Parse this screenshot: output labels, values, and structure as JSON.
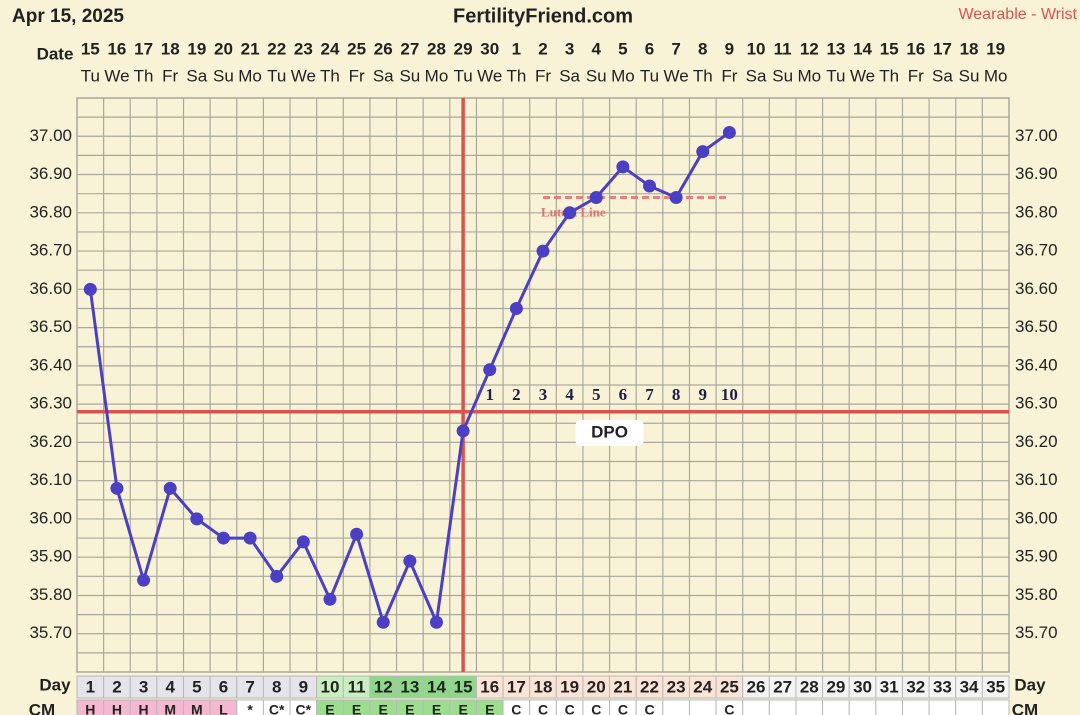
{
  "chart_data": {
    "type": "line",
    "date": "Apr 15, 2025",
    "title": "FertilityFriend.com",
    "source": "Wearable - Wrist",
    "date_label": "Date",
    "day_label": "Day",
    "cm_label": "CM",
    "dates": [
      "15",
      "16",
      "17",
      "18",
      "19",
      "20",
      "21",
      "22",
      "23",
      "24",
      "25",
      "26",
      "27",
      "28",
      "29",
      "30",
      "1",
      "2",
      "3",
      "4",
      "5",
      "6",
      "7",
      "8",
      "9",
      "10",
      "11",
      "12",
      "13",
      "14",
      "15",
      "16",
      "17",
      "18",
      "19"
    ],
    "weekdays": [
      "Tu",
      "We",
      "Th",
      "Fr",
      "Sa",
      "Su",
      "Mo",
      "Tu",
      "We",
      "Th",
      "Fr",
      "Sa",
      "Su",
      "Mo",
      "Tu",
      "We",
      "Th",
      "Fr",
      "Sa",
      "Su",
      "Mo",
      "Tu",
      "We",
      "Th",
      "Fr",
      "Sa",
      "Su",
      "Mo",
      "Tu",
      "We",
      "Th",
      "Fr",
      "Sa",
      "Su",
      "Mo"
    ],
    "days": [
      1,
      2,
      3,
      4,
      5,
      6,
      7,
      8,
      9,
      10,
      11,
      12,
      13,
      14,
      15,
      16,
      17,
      18,
      19,
      20,
      21,
      22,
      23,
      24,
      25,
      26,
      27,
      28,
      29,
      30,
      31,
      32,
      33,
      34,
      35
    ],
    "series": [
      {
        "name": "Temperature",
        "color": "#4b3fc4",
        "values": [
          36.6,
          36.08,
          35.84,
          36.08,
          36.0,
          35.95,
          35.95,
          35.85,
          35.94,
          35.79,
          35.96,
          35.73,
          35.89,
          35.73,
          36.23,
          36.39,
          36.55,
          36.7,
          36.8,
          36.84,
          36.92,
          36.87,
          36.84,
          36.96,
          37.01,
          null,
          null,
          null,
          null,
          null,
          null,
          null,
          null,
          null,
          null
        ]
      }
    ],
    "cm": [
      "H",
      "H",
      "H",
      "M",
      "M",
      "L",
      "*",
      "C*",
      "C*",
      "E",
      "E",
      "E",
      "E",
      "E",
      "E",
      "E",
      "C",
      "C",
      "C",
      "C",
      "C",
      "C",
      null,
      null,
      "C",
      null,
      null,
      null,
      null,
      null,
      null,
      null,
      null,
      null,
      null
    ],
    "day_colors": [
      "#e4e4ea",
      "#e4e4ea",
      "#e4e4ea",
      "#e4e4ea",
      "#e4e4ea",
      "#e4e4ea",
      "#e4e4ea",
      "#e4e4ea",
      "#e4e4ea",
      "#c9efc0",
      "#c9efc0",
      "#8fd88a",
      "#8fd88a",
      "#8fd88a",
      "#8fd88a",
      "#fbe3d6",
      "#fbe3d6",
      "#fbe3d6",
      "#fbe3d6",
      "#fbe3d6",
      "#fbe3d6",
      "#fbe3d6",
      "#fbe3d6",
      "#fbe3d6",
      "#fbe3d6",
      "#f4f4f4",
      "#f4f4f4",
      "#f4f4f4",
      "#f4f4f4",
      "#f4f4f4",
      "#f4f4f4",
      "#f4f4f4",
      "#f4f4f4",
      "#f4f4f4",
      "#f4f4f4"
    ],
    "cm_colors": [
      "#f5b8d0",
      "#f5b8d0",
      "#f5b8d0",
      "#f5b8d0",
      "#f5b8d0",
      "#f5b8d0",
      "#ffffff",
      "#ffffff",
      "#ffffff",
      "#9edc90",
      "#9edc90",
      "#9edc90",
      "#9edc90",
      "#9edc90",
      "#9edc90",
      "#9edc90",
      "#ffffff",
      "#ffffff",
      "#ffffff",
      "#ffffff",
      "#ffffff",
      "#ffffff",
      "#ffffff",
      "#ffffff",
      "#ffffff",
      "#ffffff",
      "#ffffff",
      "#ffffff",
      "#ffffff",
      "#ffffff",
      "#ffffff",
      "#ffffff",
      "#ffffff",
      "#ffffff",
      "#ffffff"
    ],
    "ylim": [
      35.6,
      37.1
    ],
    "yticks": [
      {
        "value": 35.7,
        "label": "35.70"
      },
      {
        "value": 35.8,
        "label": "35.80"
      },
      {
        "value": 35.9,
        "label": "35.90"
      },
      {
        "value": 36.0,
        "label": "36.00"
      },
      {
        "value": 36.1,
        "label": "36.10"
      },
      {
        "value": 36.2,
        "label": "36.20"
      },
      {
        "value": 36.3,
        "label": "36.30"
      },
      {
        "value": 36.4,
        "label": "36.40"
      },
      {
        "value": 36.5,
        "label": "36.50"
      },
      {
        "value": 36.6,
        "label": "36.60"
      },
      {
        "value": 36.7,
        "label": "36.70"
      },
      {
        "value": 36.8,
        "label": "36.80"
      },
      {
        "value": 36.9,
        "label": "36.90"
      },
      {
        "value": 37.0,
        "label": "37.00"
      }
    ],
    "minor_yticks": [
      35.65,
      35.75,
      35.85,
      35.95,
      36.05,
      36.15,
      36.25,
      36.35,
      36.45,
      36.55,
      36.65,
      36.75,
      36.85,
      36.95,
      37.05
    ],
    "grid": true,
    "coverline": 36.28,
    "ovulation_day": 15,
    "luteal_line": {
      "label": "Luteal Line",
      "value": 36.84,
      "start_day": 18,
      "end_day": 25
    },
    "dpo": {
      "label": "DPO",
      "values": [
        1,
        2,
        3,
        4,
        5,
        6,
        7,
        8,
        9,
        10
      ]
    }
  }
}
